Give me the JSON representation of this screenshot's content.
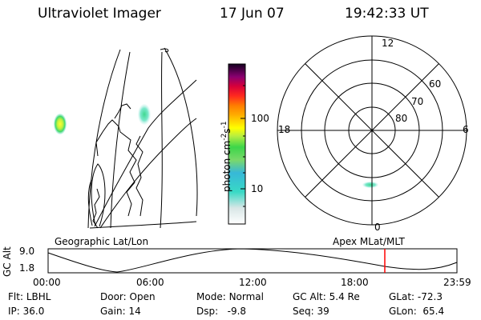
{
  "header": {
    "instrument": "Ultraviolet Imager",
    "date": "17 Jun 07",
    "time": "19:42:33 UT"
  },
  "colorbar": {
    "unit": "photon cm",
    "unit_sup1": "-2",
    "unit_mid": "s",
    "unit_sup2": "-1",
    "ticks": [
      "100",
      "10"
    ]
  },
  "polar_plot": {
    "mlt_labels": {
      "top": "12",
      "left": "18",
      "right": "6",
      "bottom": "0"
    },
    "lat_labels": [
      "60",
      "70",
      "80"
    ]
  },
  "map_labels": {
    "geographic": "Geographic Lat/Lon",
    "apex": "Apex MLat/MLT"
  },
  "altitude_plot": {
    "axis_label": "GC Alt",
    "ticks": [
      "9.0",
      "1.8"
    ],
    "time_labels": [
      "00:00",
      "06:00",
      "12:00",
      "18:00",
      "23:59"
    ],
    "marker_color": "#ff0000"
  },
  "info": {
    "row1": [
      {
        "label": "Flt:",
        "value": "LBHL"
      },
      {
        "label": "Door:",
        "value": "Open"
      },
      {
        "label": "Mode:",
        "value": "Normal"
      },
      {
        "label": "GC Alt:",
        "value": "5.4 Re"
      },
      {
        "label": "GLat:",
        "value": "-72.3"
      }
    ],
    "row2": [
      {
        "label": "IP:",
        "value": "36.0"
      },
      {
        "label": "Gain:",
        "value": "14"
      },
      {
        "label": "Dsp:",
        "value": "-9.8"
      },
      {
        "label": "Seq:",
        "value": "39"
      },
      {
        "label": "GLon:",
        "value": "65.4"
      }
    ]
  }
}
